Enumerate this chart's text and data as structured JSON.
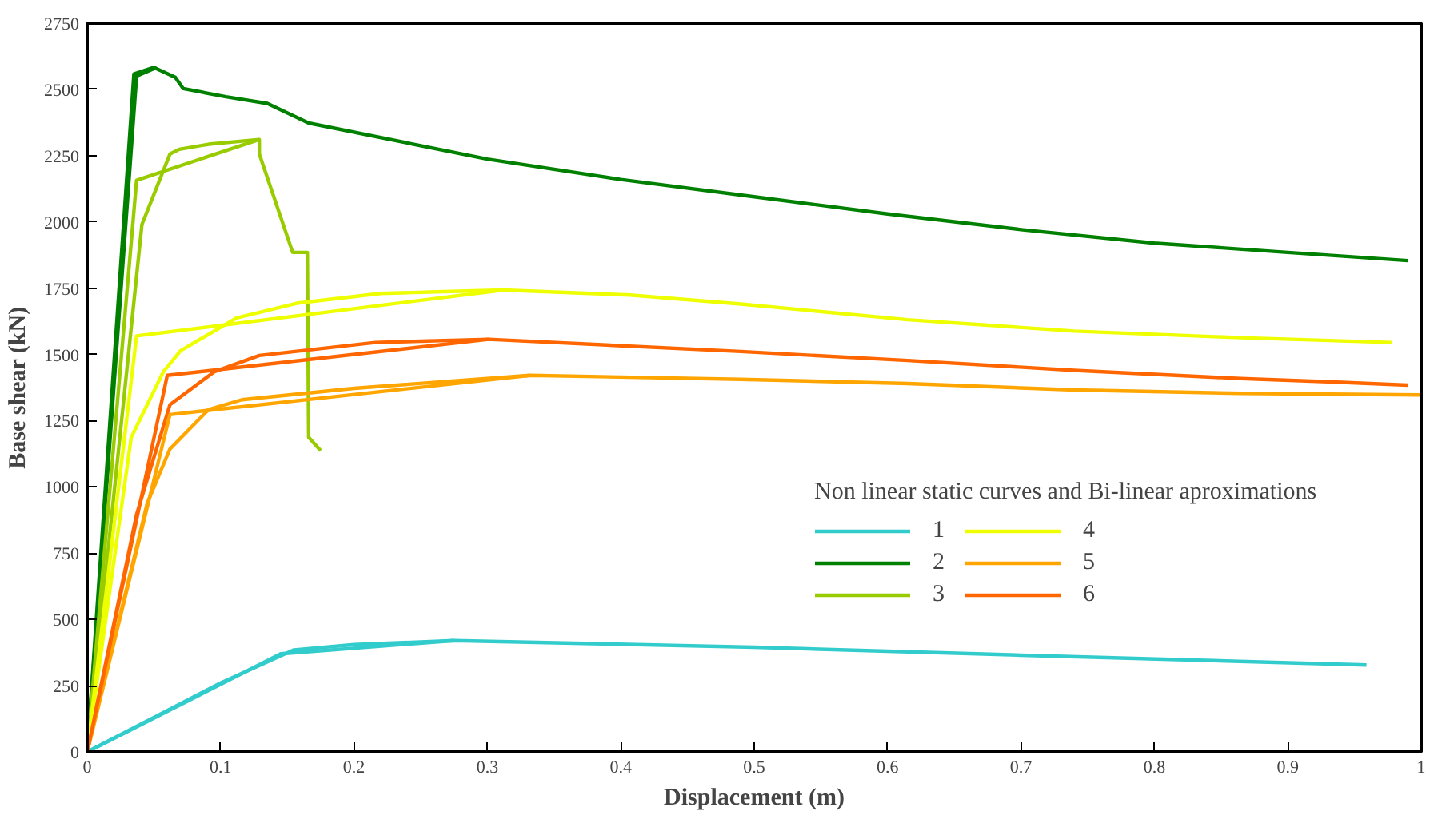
{
  "chart_data": {
    "type": "line",
    "xlabel": "Displacement (m)",
    "ylabel": "Base shear (kN)",
    "legend_title": "Non linear static curves and Bi-linear aproximations",
    "legend": "right",
    "grid": false,
    "marker": "none",
    "line_style": "solid",
    "xlim": [
      0,
      1
    ],
    "xticks": [
      0,
      0.1,
      0.2,
      0.3,
      0.4,
      0.5,
      0.6,
      0.7,
      0.8,
      0.9,
      1
    ],
    "ylim": [
      0,
      2750
    ],
    "yticks": [
      0,
      250,
      500,
      750,
      1000,
      1250,
      1500,
      1750,
      2000,
      2250,
      2500,
      2750
    ],
    "series": [
      {
        "name": "1",
        "color": "#33cccc",
        "x": [
          0,
          0.1,
          0.155,
          0.2,
          0.275,
          0.5,
          0.7,
          0.959
        ],
        "values": [
          0,
          260,
          385,
          405,
          420,
          395,
          365,
          328
        ]
      },
      {
        "name": "2",
        "color": "#008000",
        "x": [
          0,
          0.035,
          0.05,
          0.066,
          0.072,
          0.104,
          0.135,
          0.166,
          0.3,
          0.4,
          0.5,
          0.6,
          0.7,
          0.8,
          0.9,
          0.99
        ],
        "values": [
          0,
          2558,
          2583,
          2546,
          2503,
          2472,
          2447,
          2373,
          2237,
          2160,
          2095,
          2030,
          1971,
          1920,
          1885,
          1854
        ]
      },
      {
        "name": "3",
        "color": "#99cc00",
        "x": [
          0,
          0.041,
          0.062,
          0.069,
          0.091,
          0.129,
          0.129,
          0.154,
          0.165,
          0.166,
          0.175
        ],
        "values": [
          0,
          1990,
          2256,
          2274,
          2293,
          2311,
          2256,
          1885,
          1885,
          1187,
          1137
        ]
      },
      {
        "name": "4",
        "color": "#eeff00",
        "x": [
          0,
          0.033,
          0.057,
          0.07,
          0.112,
          0.157,
          0.22,
          0.262,
          0.312,
          0.407,
          0.49,
          0.615,
          0.74,
          0.865,
          0.978
        ],
        "values": [
          0,
          1187,
          1434,
          1514,
          1638,
          1693,
          1730,
          1736,
          1743,
          1724,
          1690,
          1631,
          1588,
          1563,
          1545
        ]
      },
      {
        "name": "5",
        "color": "#ffa500",
        "x": [
          0,
          0.045,
          0.062,
          0.091,
          0.116,
          0.2,
          0.332,
          0.49,
          0.615,
          0.74,
          0.865,
          0.999
        ],
        "values": [
          0,
          939,
          1143,
          1292,
          1329,
          1372,
          1421,
          1406,
          1390,
          1366,
          1353,
          1347
        ]
      },
      {
        "name": "6",
        "color": "#ff6600",
        "x": [
          0,
          0.037,
          0.062,
          0.095,
          0.129,
          0.216,
          0.301,
          0.49,
          0.615,
          0.74,
          0.865,
          0.93,
          0.99
        ],
        "values": [
          0,
          896,
          1310,
          1434,
          1496,
          1545,
          1557,
          1511,
          1477,
          1440,
          1409,
          1397,
          1384
        ]
      },
      {
        "color": "#33cccc",
        "x": [
          0,
          0.145,
          0.275
        ],
        "values": [
          0,
          370,
          420
        ]
      },
      {
        "color": "#008000",
        "x": [
          0,
          0.037,
          0.052
        ],
        "values": [
          0,
          2550,
          2583
        ]
      },
      {
        "color": "#99cc00",
        "x": [
          0,
          0.037,
          0.129
        ],
        "values": [
          0,
          2157,
          2311
        ]
      },
      {
        "color": "#eeff00",
        "x": [
          0,
          0.037,
          0.312
        ],
        "values": [
          0,
          1570,
          1743
        ]
      },
      {
        "color": "#ffa500",
        "x": [
          0,
          0.062,
          0.332
        ],
        "values": [
          0,
          1273,
          1421
        ]
      },
      {
        "color": "#ff6600",
        "x": [
          0,
          0.06,
          0.301
        ],
        "values": [
          0,
          1421,
          1557
        ]
      }
    ]
  }
}
